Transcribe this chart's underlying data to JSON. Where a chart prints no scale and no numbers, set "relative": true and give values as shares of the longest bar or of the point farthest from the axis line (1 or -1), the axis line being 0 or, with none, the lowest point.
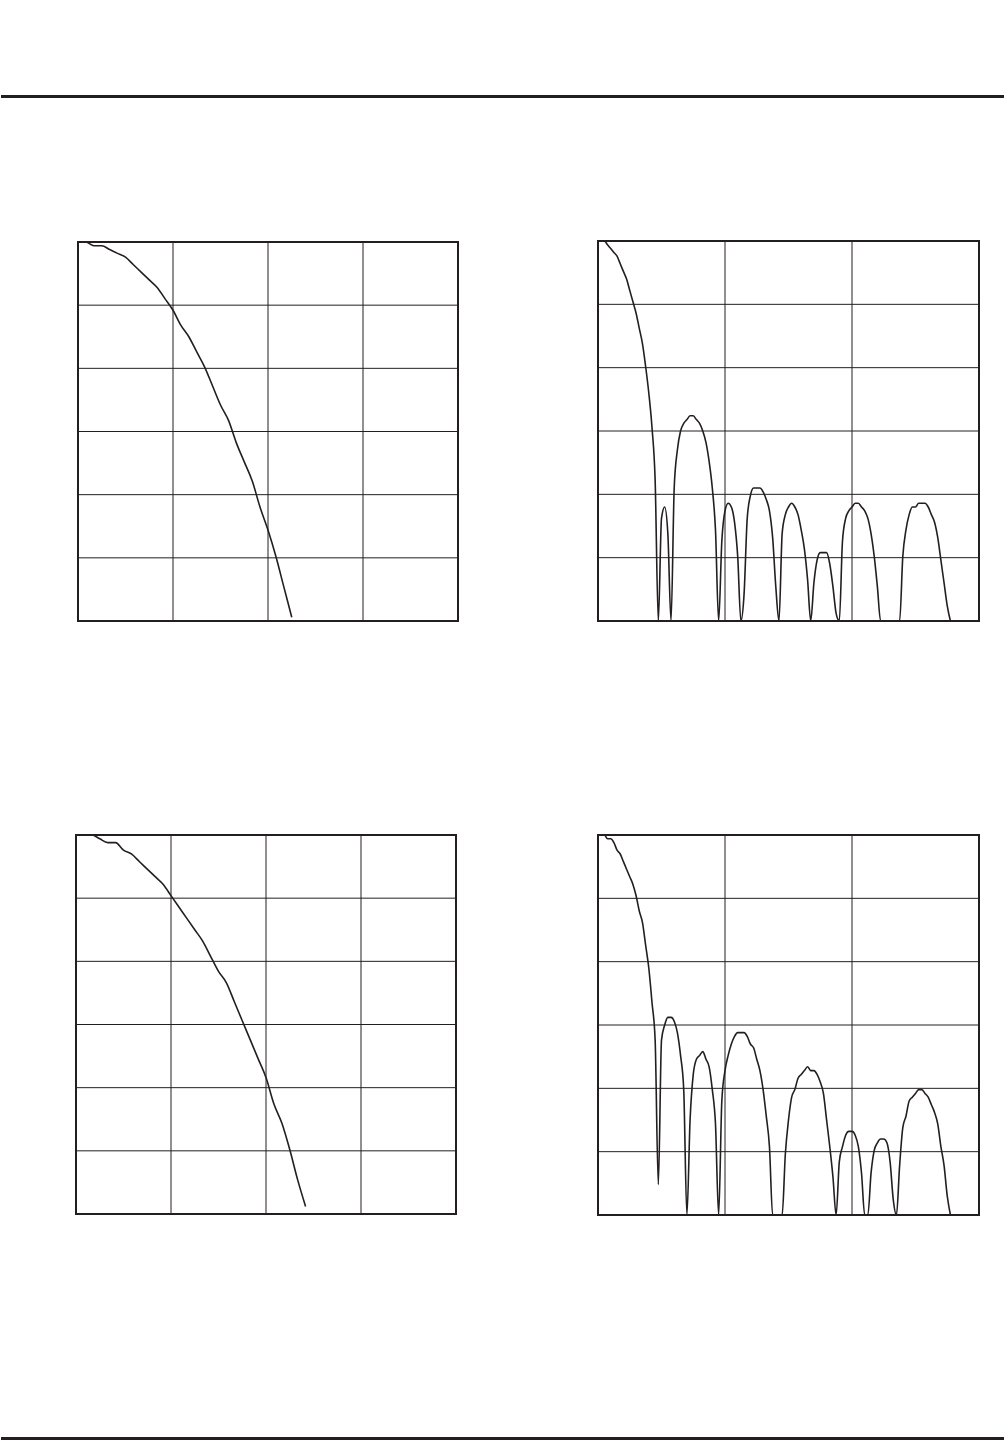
{
  "chart_data": [
    {
      "type": "line",
      "relative": true,
      "grid": true,
      "tick_labels": false,
      "categories": [
        null,
        null,
        null,
        null,
        null,
        null,
        null,
        null,
        null,
        null,
        null,
        null,
        null,
        null,
        null,
        null,
        null,
        null,
        null,
        null,
        null,
        null,
        null,
        null,
        null,
        null,
        null,
        null,
        null,
        null,
        null,
        null,
        null,
        null,
        null,
        null,
        null,
        null,
        null,
        null,
        null,
        null,
        null,
        null,
        null,
        null,
        null,
        null,
        null
      ],
      "series": [
        {
          "color": "#231f20",
          "values": [
            1,
            1,
            0.99,
            0.99,
            0.98,
            0.97,
            0.96,
            0.94,
            0.92,
            0.9,
            0.88,
            0.85,
            0.82,
            0.78,
            0.75,
            0.71,
            0.67,
            0.62,
            0.57,
            0.53,
            0.47,
            0.42,
            0.37,
            0.3,
            0.24,
            0.17,
            0.09,
            0.01,
            null,
            null,
            null,
            null,
            null,
            null,
            null,
            null,
            null,
            null,
            null,
            null,
            null,
            null,
            null,
            null,
            null,
            null,
            null,
            null,
            null
          ]
        }
      ]
    },
    {
      "type": "line",
      "relative": true,
      "grid": true,
      "tick_labels": false,
      "categories": [
        null,
        null,
        null,
        null,
        null,
        null,
        null,
        null,
        null,
        null,
        null,
        null,
        null,
        null,
        null,
        null,
        null,
        null,
        null,
        null,
        null,
        null,
        null,
        null,
        null,
        null,
        null,
        null,
        null,
        null,
        null,
        null,
        null,
        null,
        null,
        null,
        null,
        null,
        null,
        null,
        null,
        null,
        null,
        null,
        null,
        null,
        null,
        null,
        null,
        null,
        null,
        null,
        null,
        null,
        null,
        null,
        null,
        null,
        null,
        null,
        null,
        null,
        null,
        null,
        null,
        null,
        null,
        null,
        null,
        null,
        null,
        null,
        null,
        null,
        null,
        null,
        null,
        null,
        null,
        null,
        null,
        null,
        null,
        null,
        null,
        null,
        null,
        null,
        null,
        null,
        null,
        null,
        null,
        null,
        null,
        null,
        null,
        null,
        null,
        null,
        null,
        null,
        null,
        null,
        null,
        null,
        null,
        null,
        null,
        null,
        null,
        null,
        null,
        null,
        null,
        null,
        null,
        null,
        null,
        null,
        null
      ],
      "series": [
        {
          "color": "#231f20",
          "values": [
            1,
            1,
            1,
            0.99,
            0.98,
            0.97,
            0.96,
            0.94,
            0.92,
            0.9,
            0.87,
            0.84,
            0.81,
            0.77,
            0.73,
            0.67,
            0.6,
            0.51,
            0.37,
            0,
            0.27,
            0.3,
            0.23,
            0,
            0.35,
            0.45,
            0.5,
            0.52,
            0.53,
            0.54,
            0.54,
            0.53,
            0.52,
            0.5,
            0.47,
            0.42,
            0.35,
            0.24,
            0,
            0.21,
            0.29,
            0.31,
            0.3,
            0.26,
            0.17,
            0,
            0.07,
            0.27,
            0.33,
            0.35,
            0.35,
            0.35,
            0.34,
            0.32,
            0.29,
            0.22,
            0.09,
            0,
            0.23,
            0.28,
            0.3,
            0.31,
            0.3,
            0.28,
            0.24,
            0.19,
            0.11,
            0,
            0.1,
            0.16,
            0.18,
            0.18,
            0.18,
            0.15,
            0.09,
            0.02,
            0,
            0.21,
            0.27,
            0.29,
            0.3,
            0.31,
            0.31,
            0.3,
            0.29,
            0.27,
            0.23,
            0.17,
            0.09,
            0,
            null,
            null,
            null,
            null,
            null,
            0,
            0.17,
            0.24,
            0.28,
            0.3,
            0.3,
            0.31,
            0.31,
            0.31,
            0.3,
            0.28,
            0.26,
            0.22,
            0.16,
            0.1,
            0.04,
            0,
            null,
            null,
            null,
            null,
            null,
            null,
            null,
            null,
            null
          ]
        }
      ]
    },
    {
      "type": "line",
      "relative": true,
      "grid": true,
      "tick_labels": false,
      "categories": [
        null,
        null,
        null,
        null,
        null,
        null,
        null,
        null,
        null,
        null,
        null,
        null,
        null,
        null,
        null,
        null,
        null,
        null,
        null,
        null,
        null,
        null,
        null,
        null,
        null,
        null,
        null,
        null,
        null,
        null,
        null,
        null,
        null,
        null,
        null,
        null,
        null,
        null,
        null,
        null,
        null,
        null,
        null,
        null,
        null,
        null,
        null,
        null,
        null
      ],
      "series": [
        {
          "color": "#231f20",
          "values": [
            1,
            1,
            1,
            0.99,
            0.98,
            0.98,
            0.96,
            0.95,
            0.93,
            0.91,
            0.89,
            0.87,
            0.84,
            0.81,
            0.78,
            0.75,
            0.72,
            0.68,
            0.64,
            0.61,
            0.56,
            0.51,
            0.46,
            0.41,
            0.36,
            0.29,
            0.24,
            0.17,
            0.09,
            0.02,
            null,
            null,
            null,
            null,
            null,
            null,
            null,
            null,
            null,
            null,
            null,
            null,
            null,
            null,
            null,
            null,
            null,
            null,
            null
          ]
        }
      ]
    },
    {
      "type": "line",
      "relative": true,
      "grid": true,
      "tick_labels": false,
      "categories": [
        null,
        null,
        null,
        null,
        null,
        null,
        null,
        null,
        null,
        null,
        null,
        null,
        null,
        null,
        null,
        null,
        null,
        null,
        null,
        null,
        null,
        null,
        null,
        null,
        null,
        null,
        null,
        null,
        null,
        null,
        null,
        null,
        null,
        null,
        null,
        null,
        null,
        null,
        null,
        null,
        null,
        null,
        null,
        null,
        null,
        null,
        null,
        null,
        null,
        null,
        null,
        null,
        null,
        null,
        null,
        null,
        null,
        null,
        null,
        null,
        null,
        null,
        null,
        null,
        null,
        null,
        null,
        null,
        null,
        null,
        null,
        null,
        null,
        null,
        null,
        null,
        null,
        null,
        null,
        null,
        null,
        null,
        null,
        null,
        null,
        null,
        null,
        null,
        null,
        null,
        null,
        null,
        null,
        null,
        null,
        null,
        null,
        null,
        null,
        null,
        null,
        null,
        null,
        null,
        null,
        null,
        null,
        null,
        null,
        null,
        null,
        null,
        null,
        null,
        null,
        null,
        null,
        null,
        null,
        null,
        null
      ],
      "series": [
        {
          "color": "#231f20",
          "values": [
            1,
            1,
            1,
            0.99,
            0.99,
            0.98,
            0.96,
            0.95,
            0.93,
            0.91,
            0.89,
            0.87,
            0.84,
            0.8,
            0.77,
            0.71,
            0.65,
            0.56,
            0.46,
            0.08,
            0.46,
            0.5,
            0.52,
            0.52,
            0.51,
            0.48,
            0.42,
            0.33,
            0,
            0.25,
            0.37,
            0.41,
            0.42,
            0.43,
            0.41,
            0.39,
            0.33,
            0.24,
            0,
            0.3,
            0.38,
            0.42,
            0.45,
            0.47,
            0.48,
            0.48,
            0.48,
            0.47,
            0.45,
            0.44,
            0.41,
            0.38,
            0.33,
            0.26,
            0.18,
            0,
            null,
            null,
            0,
            0.16,
            0.25,
            0.31,
            0.33,
            0.36,
            0.37,
            0.38,
            0.39,
            0.38,
            0.38,
            0.37,
            0.35,
            0.32,
            0.25,
            0.18,
            0.1,
            0,
            0.14,
            0.18,
            0.21,
            0.22,
            0.22,
            0.21,
            0.18,
            0.11,
            0,
            0,
            0.11,
            0.17,
            0.19,
            0.2,
            0.2,
            0.19,
            0.14,
            0.04,
            0,
            0.13,
            0.23,
            0.26,
            0.3,
            0.31,
            0.32,
            0.33,
            0.33,
            0.32,
            0.31,
            0.29,
            0.27,
            0.24,
            0.18,
            0.13,
            0.05,
            0,
            null,
            null,
            null,
            null,
            null,
            null,
            null,
            null,
            null
          ]
        }
      ]
    }
  ]
}
